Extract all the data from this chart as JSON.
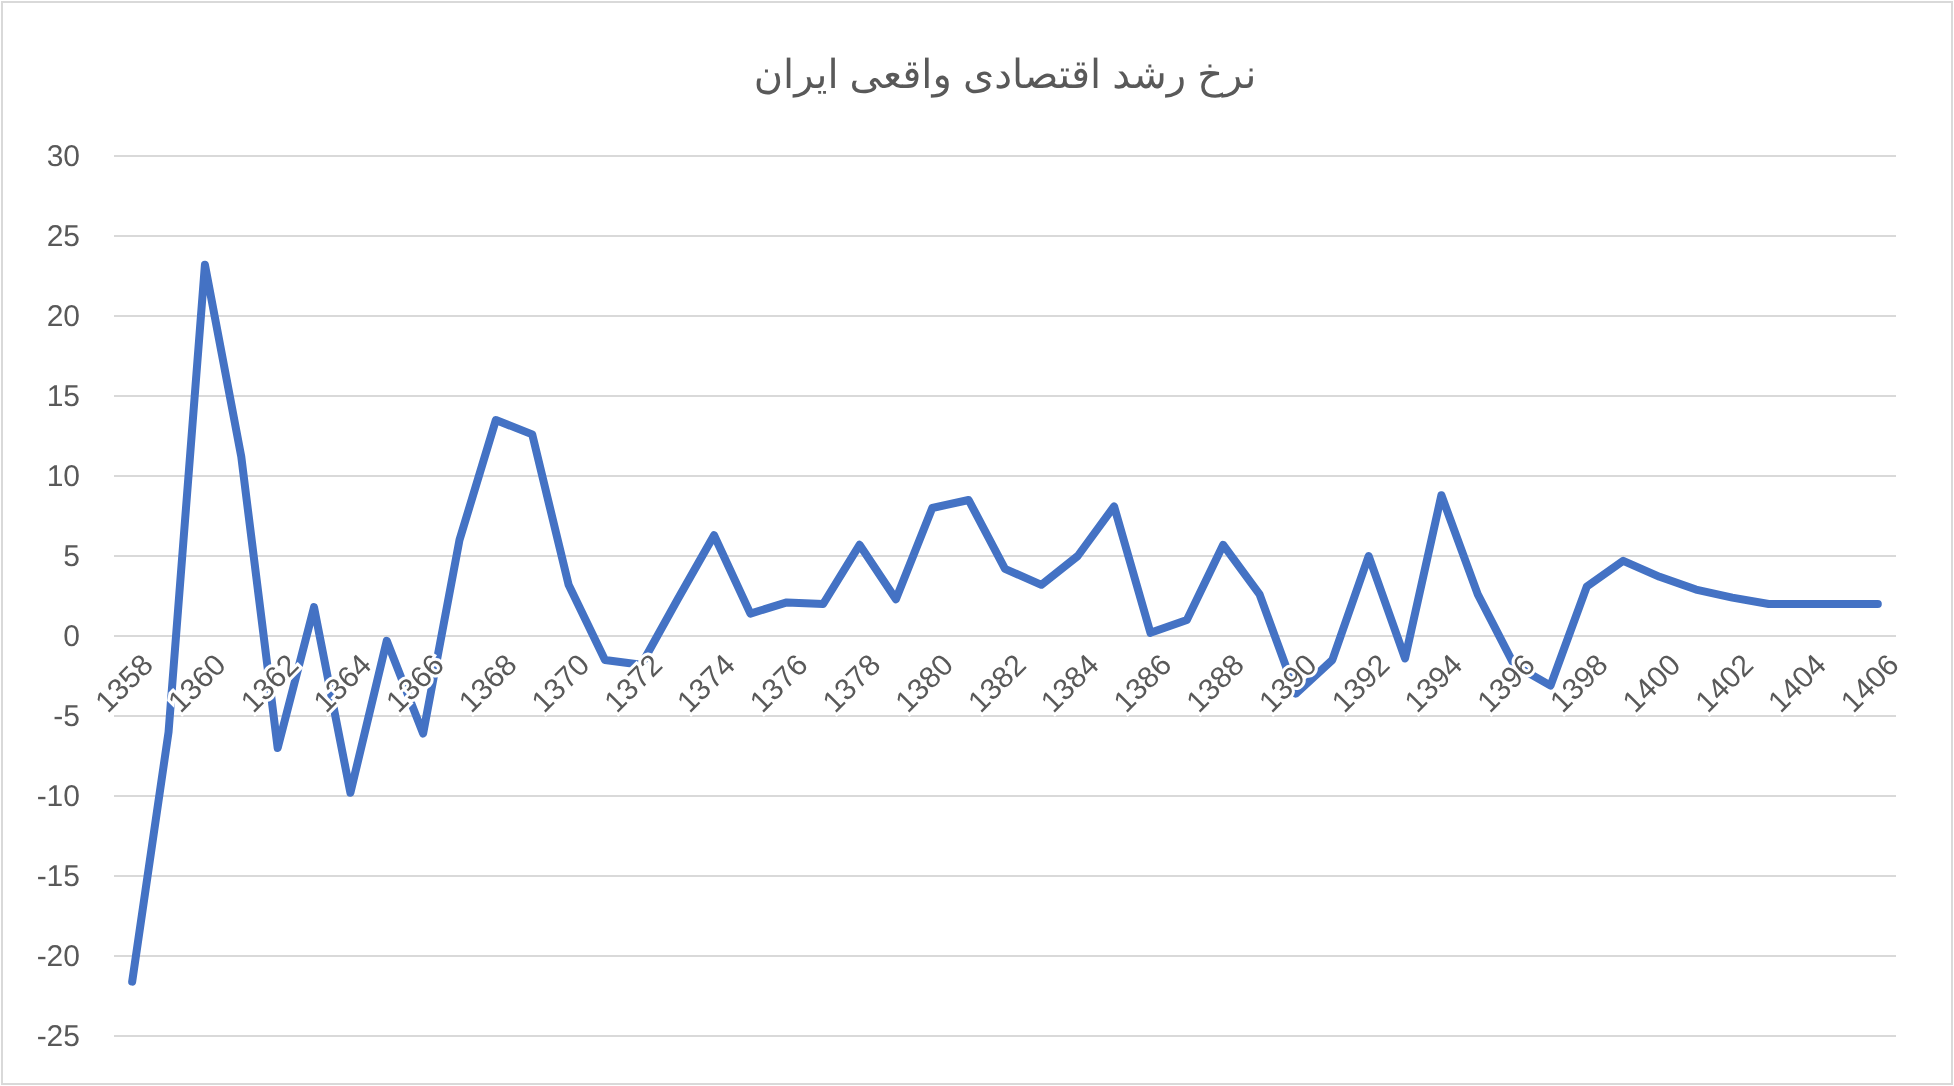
{
  "chart_data": {
    "type": "line",
    "title": "نرخ رشد اقتصادی واقعی ایران",
    "categories": [
      "1358",
      null,
      "1360",
      null,
      "1362",
      null,
      "1364",
      null,
      "1366",
      null,
      "1368",
      null,
      "1370",
      null,
      "1372",
      null,
      "1374",
      null,
      "1376",
      null,
      "1378",
      null,
      "1380",
      null,
      "1382",
      null,
      "1384",
      null,
      "1386",
      null,
      "1388",
      null,
      "1390",
      null,
      "1392",
      null,
      "1394",
      null,
      "1396",
      null,
      "1398",
      null,
      "1400",
      null,
      "1402",
      null,
      "1404",
      null,
      "1406"
    ],
    "series": [
      {
        "color": "#4472c4",
        "values": [
          -21.6,
          -6,
          23.2,
          11.2,
          -7.0,
          1.8,
          -9.8,
          -0.3,
          -6.1,
          6.0,
          13.5,
          12.6,
          3.2,
          -1.5,
          -1.8,
          2.3,
          6.3,
          1.4,
          2.1,
          2.0,
          5.7,
          2.3,
          8.0,
          8.5,
          4.2,
          3.2,
          5.0,
          8.1,
          0.2,
          1.0,
          5.7,
          2.6,
          -3.6,
          -1.5,
          5.0,
          -1.4,
          8.8,
          2.6,
          -1.8,
          -3.1,
          3.1,
          4.7,
          3.7,
          2.9,
          2.4,
          2.0,
          2.0,
          2.0,
          2.0
        ]
      }
    ],
    "ylim": [
      -25,
      30
    ],
    "yticks": [
      -25,
      -20,
      -15,
      -10,
      -5,
      0,
      5,
      10,
      15,
      20,
      25,
      30
    ],
    "grid": "y"
  }
}
